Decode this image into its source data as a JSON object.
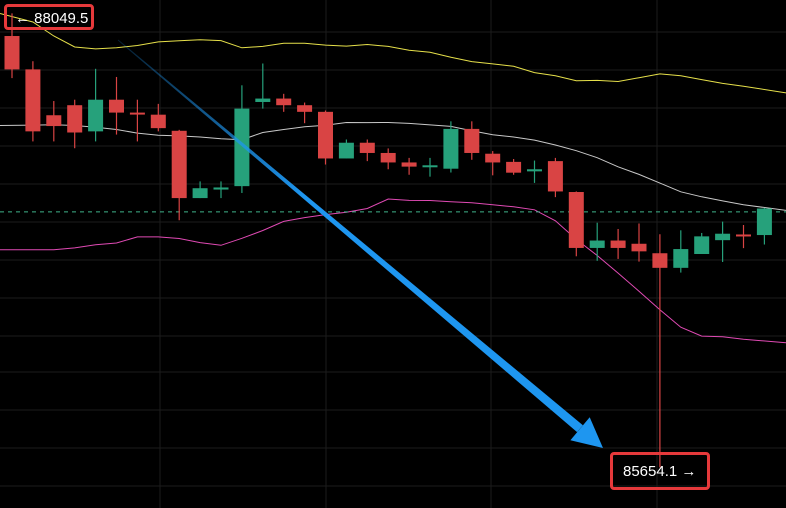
{
  "annotations": {
    "high_label": "← 88049.5",
    "low_label": "85654.1 →",
    "box_color": "#e5393b",
    "arrow_color": "#1e96f0"
  },
  "chart_data": {
    "type": "candlestick",
    "title": "",
    "xlabel": "",
    "ylabel": "",
    "grid": true,
    "ylim": [
      85440,
      88120
    ],
    "colors": {
      "up": "#26a17b",
      "down": "#d94444",
      "upper_band": "#e6e04a",
      "middle_band": "#c8c8c8",
      "lower_band": "#e04ab4",
      "current_price_line": "#3fb38a",
      "arrow": "#1e96f0"
    },
    "current_price": 87002,
    "candles": [
      {
        "open": 87930,
        "high": 88049.5,
        "low": 87708,
        "close": 87754
      },
      {
        "open": 87754,
        "high": 87797,
        "low": 87374,
        "close": 87427
      },
      {
        "open": 87512,
        "high": 87587,
        "low": 87374,
        "close": 87455
      },
      {
        "open": 87565,
        "high": 87594,
        "low": 87338,
        "close": 87421
      },
      {
        "open": 87427,
        "high": 87757,
        "low": 87374,
        "close": 87594
      },
      {
        "open": 87594,
        "high": 87714,
        "low": 87410,
        "close": 87526
      },
      {
        "open": 87526,
        "high": 87594,
        "low": 87374,
        "close": 87519
      },
      {
        "open": 87515,
        "high": 87572,
        "low": 87427,
        "close": 87444
      },
      {
        "open": 87430,
        "high": 87435,
        "low": 86958,
        "close": 87075
      },
      {
        "open": 87075,
        "high": 87163,
        "low": 87075,
        "close": 87127
      },
      {
        "open": 87120,
        "high": 87163,
        "low": 87075,
        "close": 87131
      },
      {
        "open": 87138,
        "high": 87670,
        "low": 87102,
        "close": 87547
      },
      {
        "open": 87582,
        "high": 87785,
        "low": 87547,
        "close": 87600
      },
      {
        "open": 87600,
        "high": 87625,
        "low": 87530,
        "close": 87565
      },
      {
        "open": 87565,
        "high": 87579,
        "low": 87470,
        "close": 87530
      },
      {
        "open": 87530,
        "high": 87537,
        "low": 87252,
        "close": 87284
      },
      {
        "open": 87284,
        "high": 87384,
        "low": 87284,
        "close": 87367
      },
      {
        "open": 87367,
        "high": 87384,
        "low": 87270,
        "close": 87313
      },
      {
        "open": 87313,
        "high": 87337,
        "low": 87227,
        "close": 87263
      },
      {
        "open": 87263,
        "high": 87287,
        "low": 87198,
        "close": 87241
      },
      {
        "open": 87238,
        "high": 87287,
        "low": 87188,
        "close": 87248
      },
      {
        "open": 87230,
        "high": 87480,
        "low": 87210,
        "close": 87440
      },
      {
        "open": 87440,
        "high": 87480,
        "low": 87277,
        "close": 87313
      },
      {
        "open": 87309,
        "high": 87323,
        "low": 87195,
        "close": 87263
      },
      {
        "open": 87266,
        "high": 87281,
        "low": 87198,
        "close": 87209
      },
      {
        "open": 87216,
        "high": 87273,
        "low": 87155,
        "close": 87227
      },
      {
        "open": 87270,
        "high": 87287,
        "low": 87080,
        "close": 87110
      },
      {
        "open": 87107,
        "high": 87110,
        "low": 86768,
        "close": 86812
      },
      {
        "open": 86812,
        "high": 86945,
        "low": 86744,
        "close": 86851
      },
      {
        "open": 86851,
        "high": 86912,
        "low": 86754,
        "close": 86812
      },
      {
        "open": 86834,
        "high": 86941,
        "low": 86740,
        "close": 86794
      },
      {
        "open": 86784,
        "high": 86884,
        "low": 85654.1,
        "close": 86707
      },
      {
        "open": 86707,
        "high": 86905,
        "low": 86682,
        "close": 86806
      },
      {
        "open": 86780,
        "high": 86891,
        "low": 86797,
        "close": 86873
      },
      {
        "open": 86853,
        "high": 86951,
        "low": 86738,
        "close": 86887
      },
      {
        "open": 86883,
        "high": 86933,
        "low": 86811,
        "close": 86880
      },
      {
        "open": 86880,
        "high": 87023,
        "low": 86830,
        "close": 87020
      }
    ],
    "bollinger": {
      "upper": [
        88049,
        88004,
        87930,
        87872,
        87862,
        87868,
        87880,
        87899,
        87905,
        87910,
        87906,
        87868,
        87875,
        87892,
        87892,
        87882,
        87877,
        87885,
        87875,
        87855,
        87844,
        87818,
        87795,
        87783,
        87770,
        87737,
        87720,
        87694,
        87696,
        87690,
        87710,
        87730,
        87720,
        87700,
        87680,
        87665,
        87630
      ],
      "middle": [
        87458,
        87460,
        87462,
        87458,
        87449,
        87437,
        87418,
        87406,
        87403,
        87397,
        87388,
        87383,
        87421,
        87437,
        87451,
        87459,
        87474,
        87473,
        87474,
        87469,
        87461,
        87453,
        87430,
        87409,
        87397,
        87381,
        87355,
        87325,
        87288,
        87240,
        87200,
        87154,
        87108,
        87082,
        87060,
        87040,
        87010
      ],
      "lower": [
        86802,
        86802,
        86802,
        86812,
        86829,
        86838,
        86870,
        86870,
        86862,
        86840,
        86826,
        86863,
        86904,
        86952,
        86972,
        86988,
        87000,
        87020,
        87070,
        87063,
        87062,
        87056,
        87050,
        87040,
        87029,
        87013,
        86955,
        86857,
        86772,
        86679,
        86584,
        86486,
        86394,
        86347,
        86343,
        86330,
        86312
      ]
    }
  }
}
